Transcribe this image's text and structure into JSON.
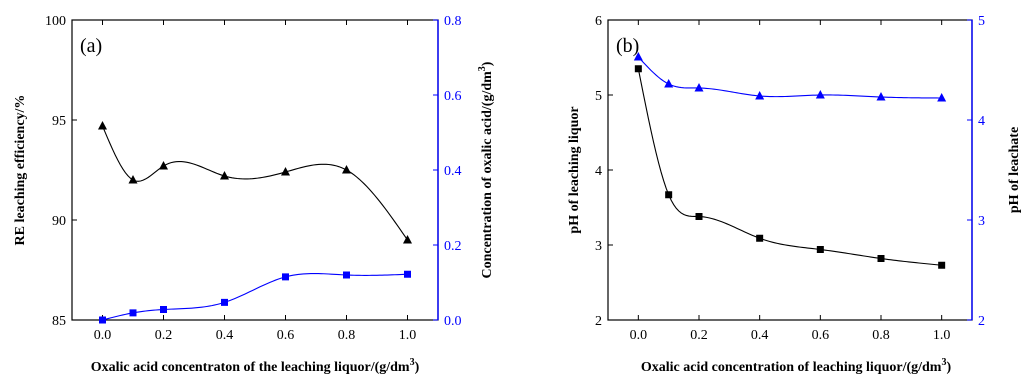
{
  "colors": {
    "black_series": "#000000",
    "blue_series": "#0000ff"
  },
  "chart_data": [
    {
      "type": "scatter",
      "panel_label": "(a)",
      "xlabel": "Oxalic acid concentraton of the leaching liquor/(g/dm",
      "xlabel_sup": "3",
      "xlabel_tail": ")",
      "ylabel_left": "RE leaching efficiency/%",
      "ylabel_right": "Concentration of oxalic acid/(g/dm",
      "ylabel_right_sup": "3",
      "ylabel_right_tail": ")",
      "xlim": [
        -0.1,
        1.1
      ],
      "ylim_left": [
        85,
        100
      ],
      "ylim_right": [
        0.0,
        0.8
      ],
      "x_ticks": [
        "0.0",
        "0.2",
        "0.4",
        "0.6",
        "0.8",
        "1.0"
      ],
      "y_left_ticks": [
        "85",
        "90",
        "95",
        "100"
      ],
      "y_right_ticks": [
        "0.0",
        "0.2",
        "0.4",
        "0.6",
        "0.8"
      ],
      "series": [
        {
          "axis": "left",
          "marker": "triangle",
          "color": "#000000",
          "x": [
            0.0,
            0.1,
            0.2,
            0.4,
            0.6,
            0.8,
            1.0
          ],
          "y": [
            94.7,
            92.0,
            92.7,
            92.2,
            92.4,
            92.5,
            89.0
          ]
        },
        {
          "axis": "right",
          "marker": "square",
          "color": "#0000ff",
          "x": [
            0.0,
            0.1,
            0.2,
            0.4,
            0.6,
            0.8,
            1.0
          ],
          "y": [
            0.0,
            0.019,
            0.028,
            0.047,
            0.115,
            0.12,
            0.122
          ]
        }
      ]
    },
    {
      "type": "scatter",
      "panel_label": "(b)",
      "xlabel": "Oxalic acid concentration of leaching liquor/(g/dm",
      "xlabel_sup": "3",
      "xlabel_tail": ")",
      "ylabel_left": "pH of leaching liquor",
      "ylabel_right": "pH of  leachate",
      "xlim": [
        -0.1,
        1.1
      ],
      "ylim_left": [
        2,
        6
      ],
      "ylim_right": [
        2,
        5
      ],
      "x_ticks": [
        "0.0",
        "0.2",
        "0.4",
        "0.6",
        "0.8",
        "1.0"
      ],
      "y_left_ticks": [
        "2",
        "3",
        "4",
        "5",
        "6"
      ],
      "y_right_ticks": [
        "2",
        "3",
        "4",
        "5"
      ],
      "series": [
        {
          "axis": "left",
          "marker": "square",
          "color": "#000000",
          "x": [
            0.0,
            0.1,
            0.2,
            0.4,
            0.6,
            0.8,
            1.0
          ],
          "y": [
            5.35,
            3.67,
            3.38,
            3.09,
            2.94,
            2.82,
            2.73
          ]
        },
        {
          "axis": "right",
          "marker": "triangle",
          "color": "#0000ff",
          "x": [
            0.0,
            0.1,
            0.2,
            0.4,
            0.6,
            0.8,
            1.0
          ],
          "y": [
            4.63,
            4.36,
            4.32,
            4.24,
            4.25,
            4.23,
            4.22
          ]
        }
      ]
    }
  ]
}
